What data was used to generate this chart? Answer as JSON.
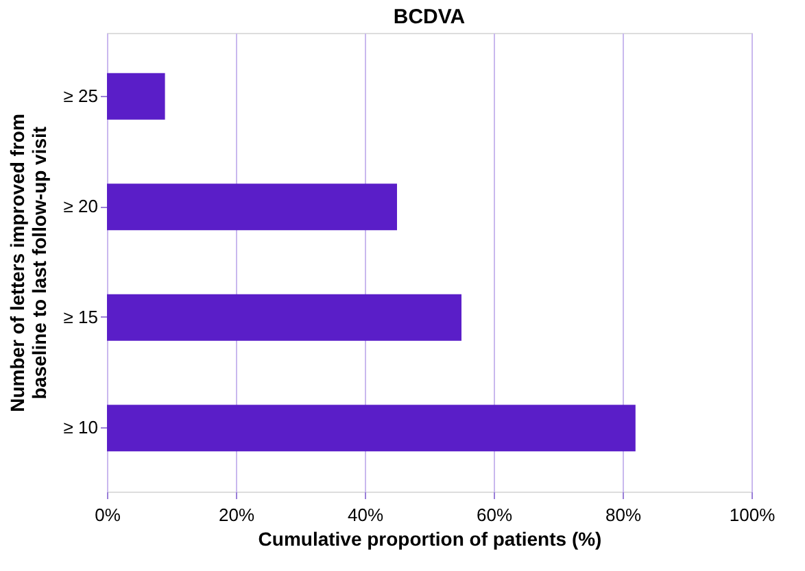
{
  "chart_data": {
    "type": "bar",
    "orientation": "horizontal",
    "title": "BCDVA",
    "categories": [
      "≥ 25",
      "≥ 20",
      "≥ 15",
      "≥ 10"
    ],
    "values": [
      9,
      45,
      55,
      82
    ],
    "color": "#5a1ec8",
    "xlim": [
      0,
      100
    ],
    "xticks": [
      {
        "value": 0,
        "label": "0%"
      },
      {
        "value": 20,
        "label": "20%"
      },
      {
        "value": 40,
        "label": "40%"
      },
      {
        "value": 60,
        "label": "60%"
      },
      {
        "value": 80,
        "label": "80%"
      },
      {
        "value": 100,
        "label": "100%"
      }
    ],
    "xlabel": "Cumulative proportion of patients (%)",
    "ylabel": "Number of letters improved from baseline to last follow-up visit",
    "grid": "x"
  }
}
